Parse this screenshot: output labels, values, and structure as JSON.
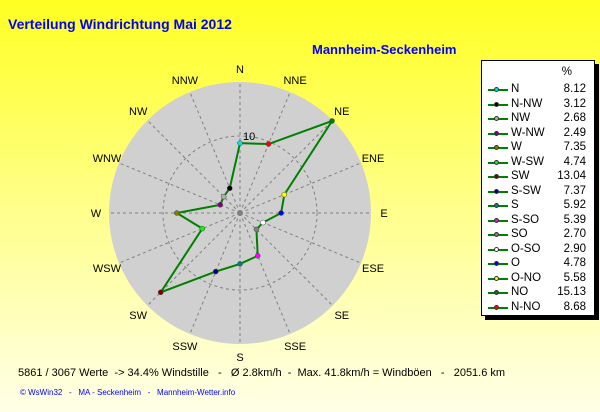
{
  "title": "Verteilung Windrichtung   Mai 2012",
  "subtitle": "Mannheim-Seckenheim",
  "chart_data": {
    "type": "radar",
    "directions": [
      "N",
      "NNE",
      "NE",
      "ENE",
      "E",
      "ESE",
      "SE",
      "SSE",
      "S",
      "SSW",
      "SW",
      "WSW",
      "W",
      "WNW",
      "NW",
      "NNW"
    ],
    "ring_label": "10",
    "ring_value": 10,
    "legend_header": "%",
    "line_color": "#008000",
    "series": [
      {
        "name": "N",
        "dir_deg": 0,
        "value": 8.12,
        "color": "#00e0e0"
      },
      {
        "name": "N-NW",
        "dir_deg": 337.5,
        "value": 3.12,
        "color": "#000000"
      },
      {
        "name": "NW",
        "dir_deg": 315,
        "value": 2.68,
        "color": "#b0b0b0"
      },
      {
        "name": "W-NW",
        "dir_deg": 292.5,
        "value": 2.49,
        "color": "#800080"
      },
      {
        "name": "W",
        "dir_deg": 270,
        "value": 7.35,
        "color": "#808000"
      },
      {
        "name": "W-SW",
        "dir_deg": 247.5,
        "value": 4.74,
        "color": "#00ff00"
      },
      {
        "name": "SW",
        "dir_deg": 225,
        "value": 13.04,
        "color": "#800000"
      },
      {
        "name": "S-SW",
        "dir_deg": 202.5,
        "value": 7.37,
        "color": "#000080"
      },
      {
        "name": "S",
        "dir_deg": 180,
        "value": 5.92,
        "color": "#008080"
      },
      {
        "name": "S-SO",
        "dir_deg": 157.5,
        "value": 5.39,
        "color": "#ff00ff"
      },
      {
        "name": "SO",
        "dir_deg": 135,
        "value": 2.7,
        "color": "#808080"
      },
      {
        "name": "O-SO",
        "dir_deg": 112.5,
        "value": 2.9,
        "color": "#ffffff"
      },
      {
        "name": "O",
        "dir_deg": 90,
        "value": 4.78,
        "color": "#0000ff"
      },
      {
        "name": "O-NO",
        "dir_deg": 67.5,
        "value": 5.58,
        "color": "#ffff00"
      },
      {
        "name": "NO",
        "dir_deg": 45,
        "value": 15.13,
        "color": "#008000"
      },
      {
        "name": "N-NO",
        "dir_deg": 22.5,
        "value": 8.68,
        "color": "#ff0000"
      }
    ]
  },
  "footer": "5861 / 3067 Werte  -> 34.4% Windstille   -   Ø 2.8km/h  -  Max. 41.8km/h = Windböen   -   2051.6 km",
  "credit": "© WsWin32   -   MA - Seckenheim   -   Mannheim-Wetter.info"
}
